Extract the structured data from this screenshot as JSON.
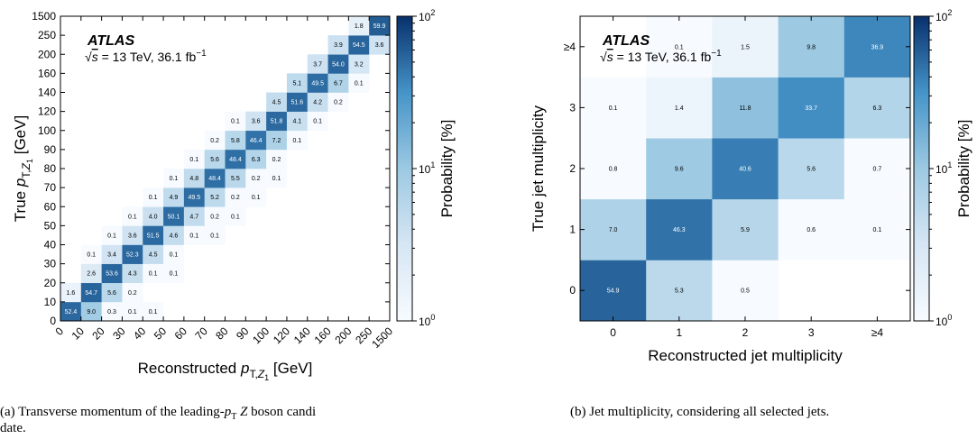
{
  "chart_data": [
    {
      "type": "heatmap",
      "xlabel": "Reconstructed p_T,Z1 [GeV]",
      "ylabel": "True p_T,Z1 [GeV]",
      "x_categories": [
        "0",
        "10",
        "20",
        "30",
        "40",
        "50",
        "60",
        "70",
        "80",
        "90",
        "100",
        "120",
        "140",
        "160",
        "200",
        "250",
        "1500"
      ],
      "y_categories": [
        "0",
        "10",
        "20",
        "30",
        "40",
        "50",
        "60",
        "70",
        "80",
        "90",
        "100",
        "120",
        "140",
        "160",
        "200",
        "250",
        "1500"
      ],
      "colorbar_label": "Probability [%]",
      "colorbar_scale": "log",
      "colorbar_range": [
        1,
        100
      ],
      "colorbar_ticks": [
        "10^0",
        "10^1",
        "10^2"
      ],
      "atlas_label": "ATLAS",
      "energy_label": "√s = 13 TeV, 36.1 fb⁻¹",
      "caption": "(a) Transverse momentum of the leading-p_T Z boson candi-date.",
      "cells": [
        {
          "x": 0,
          "y": 0,
          "v": 52.4
        },
        {
          "x": 1,
          "y": 0,
          "v": 9.0
        },
        {
          "x": 2,
          "y": 0,
          "v": 0.3
        },
        {
          "x": 3,
          "y": 0,
          "v": 0.1
        },
        {
          "x": 4,
          "y": 0,
          "v": 0.1
        },
        {
          "x": 0,
          "y": 1,
          "v": 1.6
        },
        {
          "x": 1,
          "y": 1,
          "v": 54.7
        },
        {
          "x": 2,
          "y": 1,
          "v": 5.6
        },
        {
          "x": 3,
          "y": 1,
          "v": 0.2
        },
        {
          "x": 1,
          "y": 2,
          "v": 2.6
        },
        {
          "x": 2,
          "y": 2,
          "v": 53.6
        },
        {
          "x": 3,
          "y": 2,
          "v": 4.3
        },
        {
          "x": 4,
          "y": 2,
          "v": 0.1
        },
        {
          "x": 5,
          "y": 2,
          "v": 0.1
        },
        {
          "x": 1,
          "y": 3,
          "v": 0.1
        },
        {
          "x": 2,
          "y": 3,
          "v": 3.4
        },
        {
          "x": 3,
          "y": 3,
          "v": 52.3
        },
        {
          "x": 4,
          "y": 3,
          "v": 4.5
        },
        {
          "x": 5,
          "y": 3,
          "v": 0.1
        },
        {
          "x": 2,
          "y": 4,
          "v": 0.1
        },
        {
          "x": 3,
          "y": 4,
          "v": 3.6
        },
        {
          "x": 4,
          "y": 4,
          "v": 51.5
        },
        {
          "x": 5,
          "y": 4,
          "v": 4.6
        },
        {
          "x": 6,
          "y": 4,
          "v": 0.1
        },
        {
          "x": 7,
          "y": 4,
          "v": 0.1
        },
        {
          "x": 3,
          "y": 5,
          "v": 0.1
        },
        {
          "x": 4,
          "y": 5,
          "v": 4.0
        },
        {
          "x": 5,
          "y": 5,
          "v": 50.1
        },
        {
          "x": 6,
          "y": 5,
          "v": 4.7
        },
        {
          "x": 7,
          "y": 5,
          "v": 0.2
        },
        {
          "x": 8,
          "y": 5,
          "v": 0.1
        },
        {
          "x": 4,
          "y": 6,
          "v": 0.1
        },
        {
          "x": 5,
          "y": 6,
          "v": 4.9
        },
        {
          "x": 6,
          "y": 6,
          "v": 49.5
        },
        {
          "x": 7,
          "y": 6,
          "v": 5.2
        },
        {
          "x": 8,
          "y": 6,
          "v": 0.2
        },
        {
          "x": 9,
          "y": 6,
          "v": 0.1
        },
        {
          "x": 5,
          "y": 7,
          "v": 0.1
        },
        {
          "x": 6,
          "y": 7,
          "v": 4.8
        },
        {
          "x": 7,
          "y": 7,
          "v": 48.4
        },
        {
          "x": 8,
          "y": 7,
          "v": 5.5
        },
        {
          "x": 9,
          "y": 7,
          "v": 0.2
        },
        {
          "x": 10,
          "y": 7,
          "v": 0.1
        },
        {
          "x": 6,
          "y": 8,
          "v": 0.1
        },
        {
          "x": 7,
          "y": 8,
          "v": 5.6
        },
        {
          "x": 8,
          "y": 8,
          "v": 48.4
        },
        {
          "x": 9,
          "y": 8,
          "v": 6.3
        },
        {
          "x": 10,
          "y": 8,
          "v": 0.2
        },
        {
          "x": 7,
          "y": 9,
          "v": 0.2
        },
        {
          "x": 8,
          "y": 9,
          "v": 5.8
        },
        {
          "x": 9,
          "y": 9,
          "v": 46.4
        },
        {
          "x": 10,
          "y": 9,
          "v": 7.2
        },
        {
          "x": 11,
          "y": 9,
          "v": 0.1
        },
        {
          "x": 8,
          "y": 10,
          "v": 0.1
        },
        {
          "x": 9,
          "y": 10,
          "v": 3.6
        },
        {
          "x": 10,
          "y": 10,
          "v": 51.8
        },
        {
          "x": 11,
          "y": 10,
          "v": 4.1
        },
        {
          "x": 12,
          "y": 10,
          "v": 0.1
        },
        {
          "x": 10,
          "y": 11,
          "v": 4.5
        },
        {
          "x": 11,
          "y": 11,
          "v": 51.6
        },
        {
          "x": 12,
          "y": 11,
          "v": 4.2
        },
        {
          "x": 13,
          "y": 11,
          "v": 0.2
        },
        {
          "x": 11,
          "y": 12,
          "v": 5.1
        },
        {
          "x": 12,
          "y": 12,
          "v": 49.5
        },
        {
          "x": 13,
          "y": 12,
          "v": 6.7
        },
        {
          "x": 14,
          "y": 12,
          "v": 0.1
        },
        {
          "x": 12,
          "y": 13,
          "v": 3.7
        },
        {
          "x": 13,
          "y": 13,
          "v": 54.0
        },
        {
          "x": 14,
          "y": 13,
          "v": 3.2
        },
        {
          "x": 13,
          "y": 14,
          "v": 3.9
        },
        {
          "x": 14,
          "y": 14,
          "v": 54.5
        },
        {
          "x": 15,
          "y": 14,
          "v": 3.6
        },
        {
          "x": 14,
          "y": 15,
          "v": 1.8
        },
        {
          "x": 15,
          "y": 15,
          "v": 59.9
        }
      ]
    },
    {
      "type": "heatmap",
      "xlabel": "Reconstructed jet multiplicity",
      "ylabel": "True jet multiplicity",
      "x_categories": [
        "0",
        "1",
        "2",
        "3",
        "≥4"
      ],
      "y_categories": [
        "0",
        "1",
        "2",
        "3",
        "≥4"
      ],
      "colorbar_label": "Probability [%]",
      "colorbar_scale": "log",
      "colorbar_range": [
        1,
        100
      ],
      "colorbar_ticks": [
        "10^0",
        "10^1",
        "10^2"
      ],
      "atlas_label": "ATLAS",
      "energy_label": "√s = 13 TeV, 36.1 fb⁻¹",
      "caption": "(b) Jet multiplicity, considering all selected jets.",
      "cells": [
        {
          "x": 0,
          "y": 0,
          "v": 54.9
        },
        {
          "x": 1,
          "y": 0,
          "v": 5.3
        },
        {
          "x": 2,
          "y": 0,
          "v": 0.5
        },
        {
          "x": 0,
          "y": 1,
          "v": 7.0
        },
        {
          "x": 1,
          "y": 1,
          "v": 46.3
        },
        {
          "x": 2,
          "y": 1,
          "v": 5.9
        },
        {
          "x": 3,
          "y": 1,
          "v": 0.6
        },
        {
          "x": 4,
          "y": 1,
          "v": 0.1
        },
        {
          "x": 0,
          "y": 2,
          "v": 0.8
        },
        {
          "x": 1,
          "y": 2,
          "v": 9.6
        },
        {
          "x": 2,
          "y": 2,
          "v": 40.6
        },
        {
          "x": 3,
          "y": 2,
          "v": 5.6
        },
        {
          "x": 4,
          "y": 2,
          "v": 0.7
        },
        {
          "x": 0,
          "y": 3,
          "v": 0.1
        },
        {
          "x": 1,
          "y": 3,
          "v": 1.4
        },
        {
          "x": 2,
          "y": 3,
          "v": 11.8
        },
        {
          "x": 3,
          "y": 3,
          "v": 33.7
        },
        {
          "x": 4,
          "y": 3,
          "v": 6.3
        },
        {
          "x": 1,
          "y": 4,
          "v": 0.1
        },
        {
          "x": 2,
          "y": 4,
          "v": 1.5
        },
        {
          "x": 3,
          "y": 4,
          "v": 9.8
        },
        {
          "x": 4,
          "y": 4,
          "v": 36.9
        }
      ]
    }
  ]
}
